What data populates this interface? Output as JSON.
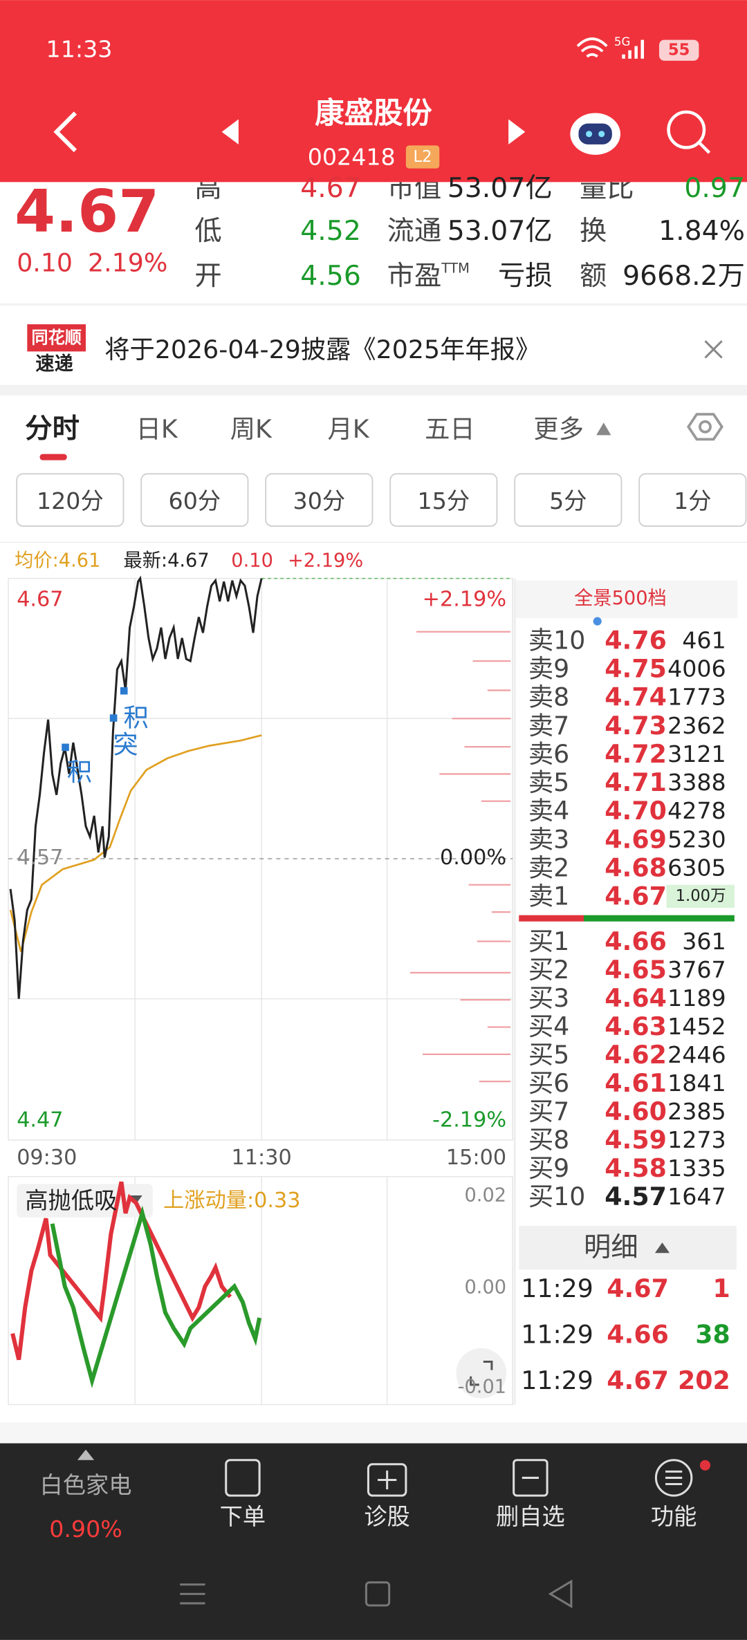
{
  "status_bar": {
    "time": "11:33",
    "network": "5G",
    "battery": "55"
  },
  "header": {
    "name": "康盛股份",
    "code": "002418",
    "badge": "L2"
  },
  "quote": {
    "price": "4.67",
    "change": "0.10",
    "change_pct": "2.19%",
    "stats": [
      {
        "label": "高",
        "value": "4.67",
        "color": "#e0323c"
      },
      {
        "label": "低",
        "value": "4.52",
        "color": "#1a9a2a"
      },
      {
        "label": "开",
        "value": "4.56",
        "color": "#1a9a2a"
      },
      {
        "label": "市值",
        "value": "53.07亿",
        "color": "#222222"
      },
      {
        "label": "流通",
        "value": "53.07亿",
        "color": "#222222"
      },
      {
        "label": "市盈",
        "sup": "TTM",
        "value": "亏损",
        "color": "#222222"
      },
      {
        "label": "量比",
        "value": "0.97",
        "color": "#1a9a2a"
      },
      {
        "label": "换",
        "value": "1.84%",
        "color": "#222222"
      },
      {
        "label": "额",
        "value": "9668.2万",
        "color": "#222222"
      }
    ]
  },
  "notice": {
    "logo_top": "同花顺",
    "logo_bottom": "速递",
    "text": "将于2026-04-29披露《2025年年报》"
  },
  "tabs": [
    "分时",
    "日K",
    "周K",
    "月K",
    "五日",
    "更多"
  ],
  "periods": [
    "120分",
    "60分",
    "30分",
    "15分",
    "5分",
    "1分"
  ],
  "info": {
    "avg": "均价:4.61",
    "latest": "最新:4.67",
    "change": "0.10",
    "pct": "+2.19%"
  },
  "chart": {
    "y_left": [
      "4.67",
      "4.57",
      "4.47"
    ],
    "y_right": [
      "+2.19%",
      "0.00%",
      "-2.19%"
    ],
    "x": [
      "09:30",
      "11:30",
      "15:00"
    ],
    "markers": [
      "积",
      "积",
      "突"
    ]
  },
  "indicator": {
    "name": "高抛低吸",
    "value": "上涨动量:0.33",
    "y": [
      "0.02",
      "0.00",
      "-0.01"
    ]
  },
  "order_book": {
    "title": "全景500档",
    "asks": [
      [
        "卖10",
        "4.76",
        "461"
      ],
      [
        "卖9",
        "4.75",
        "4006"
      ],
      [
        "卖8",
        "4.74",
        "1773"
      ],
      [
        "卖7",
        "4.73",
        "2362"
      ],
      [
        "卖6",
        "4.72",
        "3121"
      ],
      [
        "卖5",
        "4.71",
        "3388"
      ],
      [
        "卖4",
        "4.70",
        "4278"
      ],
      [
        "卖3",
        "4.69",
        "5230"
      ],
      [
        "卖2",
        "4.68",
        "6305"
      ],
      [
        "卖1",
        "4.67",
        "1.00万"
      ]
    ],
    "bids": [
      [
        "买1",
        "4.66",
        "361"
      ],
      [
        "买2",
        "4.65",
        "3767"
      ],
      [
        "买3",
        "4.64",
        "1189"
      ],
      [
        "买4",
        "4.63",
        "1452"
      ],
      [
        "买5",
        "4.62",
        "2446"
      ],
      [
        "买6",
        "4.61",
        "1841"
      ],
      [
        "买7",
        "4.60",
        "2385"
      ],
      [
        "买8",
        "4.59",
        "1273"
      ],
      [
        "买9",
        "4.58",
        "1335"
      ],
      [
        "买10",
        "4.57",
        "1647"
      ]
    ]
  },
  "trades": {
    "title": "明细",
    "rows": [
      {
        "time": "11:29",
        "price": "4.67",
        "volume": "1",
        "color": "#e0323c"
      },
      {
        "time": "11:29",
        "price": "4.66",
        "volume": "38",
        "color": "#1a9a2a"
      },
      {
        "time": "11:29",
        "price": "4.67",
        "volume": "202",
        "color": "#e0323c"
      }
    ]
  },
  "bottom_nav": {
    "sector": "白色家电",
    "sector_change": "0.90%",
    "items": [
      "下单",
      "诊股",
      "删自选",
      "功能"
    ]
  }
}
